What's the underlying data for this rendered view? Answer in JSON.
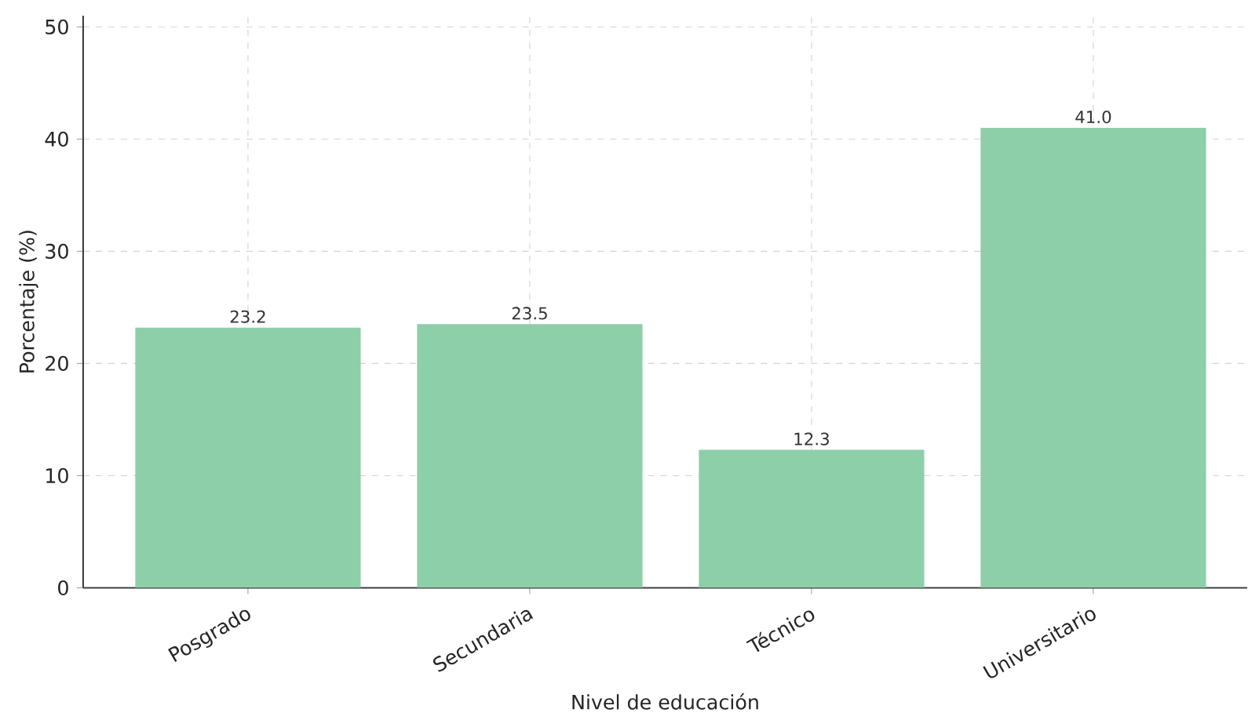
{
  "chart_data": {
    "type": "bar",
    "xlabel": "Nivel de educación",
    "ylabel": "Porcentaje (%)",
    "categories": [
      "Posgrado",
      "Secundaria",
      "Técnico",
      "Universitario"
    ],
    "values": [
      23.2,
      23.5,
      12.3,
      41.0
    ],
    "color": "#8dcfa8",
    "ylim": [
      0,
      51
    ],
    "yticks": [
      0,
      10,
      20,
      30,
      40,
      50
    ],
    "value_labels": [
      "23.2",
      "23.5",
      "12.3",
      "41.0"
    ],
    "grid": true
  }
}
